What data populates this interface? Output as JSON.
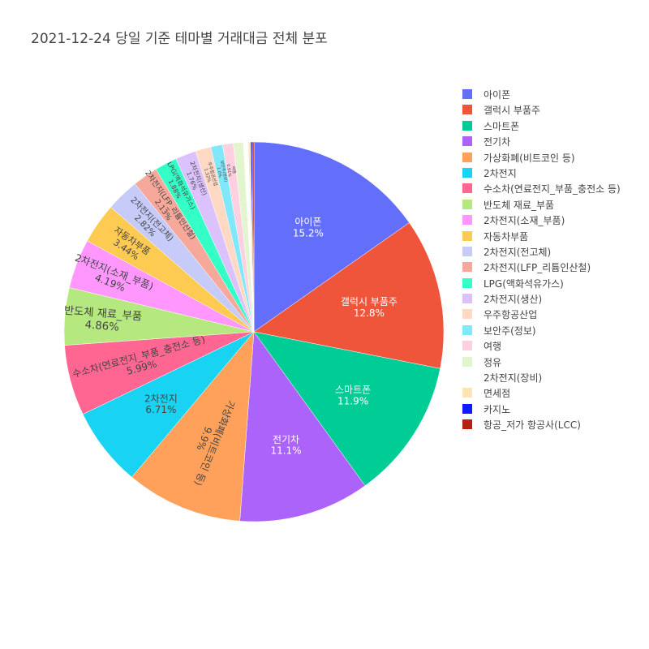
{
  "title": "2021-12-24 당일 기준 테마별 거래대금 전체 분포",
  "chart_data": {
    "type": "pie",
    "title": "2021-12-24 당일 기준 테마별 거래대금 전체 분포",
    "sort": "descending",
    "direction": "clockwise",
    "legend_position": "right",
    "slices": [
      {
        "label": "아이폰",
        "percent": 15.2,
        "color": "#636efa",
        "text": "아이폰\n15.2%"
      },
      {
        "label": "갤럭시 부품주",
        "percent": 12.8,
        "color": "#ef553b",
        "text": "갤럭시 부품주\n12.8%"
      },
      {
        "label": "스마트폰",
        "percent": 11.9,
        "color": "#00cc96",
        "text": "스마트폰\n11.9%"
      },
      {
        "label": "전기차",
        "percent": 11.1,
        "color": "#ab63fa",
        "text": "전기차\n11.1%"
      },
      {
        "label": "가상화폐(비트코인 등)",
        "percent": 9.9,
        "color": "#ffa15a",
        "text": "가상화폐(비트코인 등)\n9.9%"
      },
      {
        "label": "2차전지",
        "percent": 6.71,
        "color": "#19d3f3",
        "text": "2차전지\n6.71%"
      },
      {
        "label": "수소차(연료전지_부품_충전소 등)",
        "percent": 5.99,
        "color": "#ff6692",
        "text": "수소차(연료전지_부품_충전소 등)\n5.99%"
      },
      {
        "label": "반도체 재료_부품",
        "percent": 4.86,
        "color": "#b6e880",
        "text": "반도체 재료_부품\n4.86%"
      },
      {
        "label": "2차전지(소재_부품)",
        "percent": 4.19,
        "color": "#ff97ff",
        "text": "2차전지(소재_부품)\n4.19%"
      },
      {
        "label": "자동차부품",
        "percent": 3.44,
        "color": "#fecb52",
        "text": "자동차부품\n3.44%"
      },
      {
        "label": "2차전지(전고체)",
        "percent": 2.82,
        "color": "#c6cbfa",
        "text": "2차전지(전고체)\n2.82%"
      },
      {
        "label": "2차전지(LFP_리튬인산철)",
        "percent": 2.13,
        "color": "#f6a89b",
        "text": "2차전지(LFP_리튬인산철)\n2.13%"
      },
      {
        "label": "LPG(액화석유가스)",
        "percent": 1.88,
        "color": "#33ffc6",
        "text": "LPG(액화석유가스)\n1.88%"
      },
      {
        "label": "2차전지(생산)",
        "percent": 1.76,
        "color": "#dcc2fc",
        "text": "2차전지(생산)\n1.76%"
      },
      {
        "label": "우주항공산업",
        "percent": 1.32,
        "color": "#ffd9c4",
        "text": "우주항공산업\n1.32%"
      },
      {
        "label": "보안주(정보)",
        "percent": 1.0,
        "color": "#81e8fa",
        "text": "보안주(정보)\n1.0%"
      },
      {
        "label": "여행",
        "percent": 0.91,
        "color": "#ffd1e0",
        "text": "여행\n0.91%"
      },
      {
        "label": "정유",
        "percent": 0.85,
        "color": "#e2f5cf",
        "text": ""
      },
      {
        "label": "2차전지(장비)",
        "percent": 0.4,
        "color": "#ffffff",
        "text": ""
      },
      {
        "label": "면세점",
        "percent": 0.2,
        "color": "#fee5b3",
        "text": ""
      },
      {
        "label": "카지노",
        "percent": 0.14,
        "color": "#0d1cff",
        "text": ""
      },
      {
        "label": "항공_저가 항공사(LCC)",
        "percent": 0.14,
        "color": "#b3230e",
        "text": ""
      }
    ]
  }
}
